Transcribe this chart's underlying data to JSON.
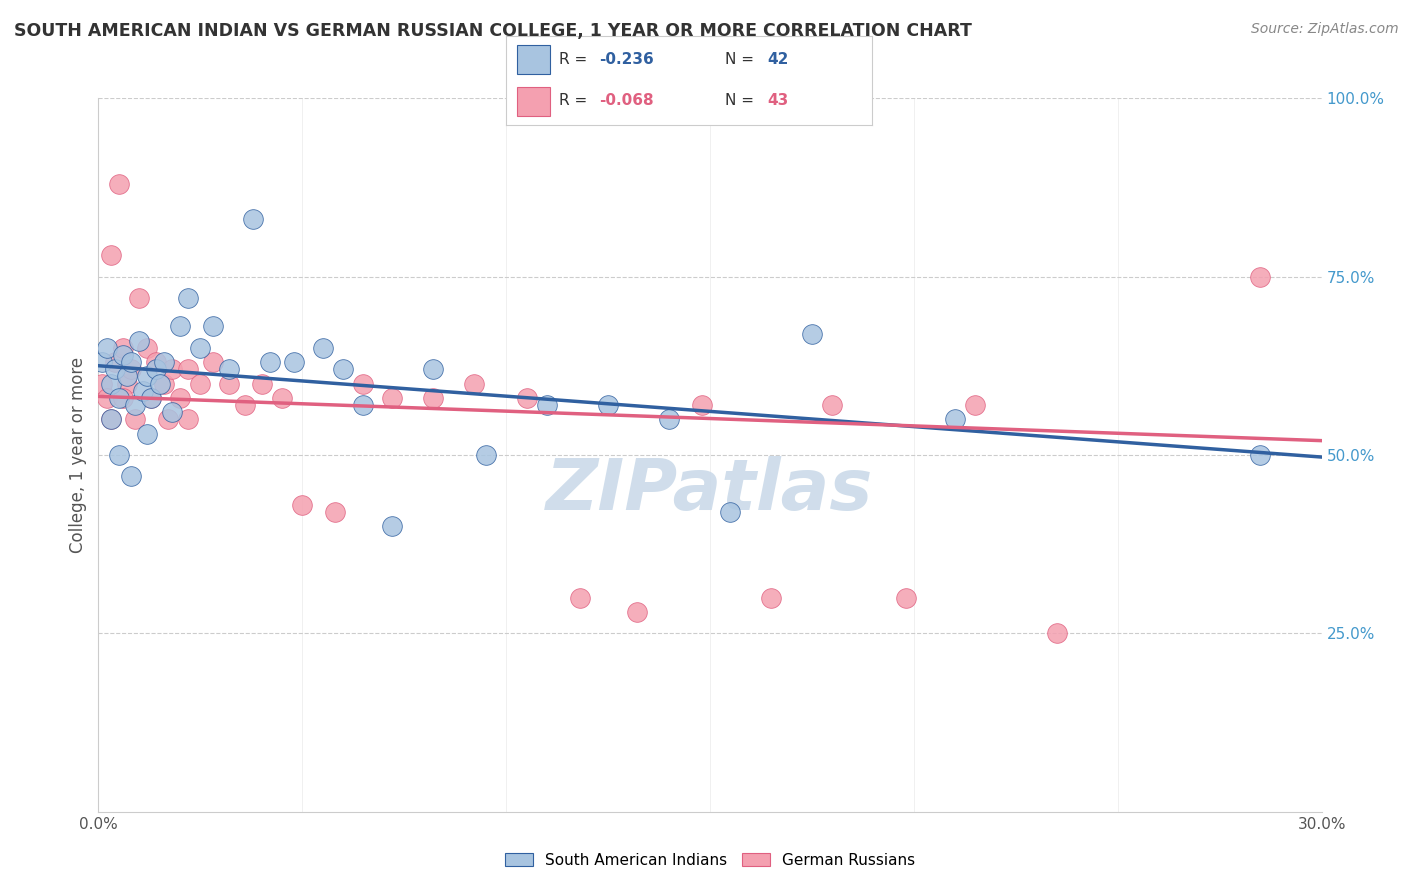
{
  "title": "SOUTH AMERICAN INDIAN VS GERMAN RUSSIAN COLLEGE, 1 YEAR OR MORE CORRELATION CHART",
  "source": "Source: ZipAtlas.com",
  "ylabel": "College, 1 year or more",
  "xmin": 0.0,
  "xmax": 0.3,
  "ymin": 0.0,
  "ymax": 1.0,
  "blue_R": -0.236,
  "blue_N": 42,
  "pink_R": -0.068,
  "pink_N": 43,
  "blue_color": "#a8c4e0",
  "pink_color": "#f4a0b0",
  "blue_line_color": "#3060a0",
  "pink_line_color": "#e06080",
  "blue_x": [
    0.001,
    0.002,
    0.003,
    0.004,
    0.005,
    0.006,
    0.007,
    0.008,
    0.009,
    0.01,
    0.011,
    0.012,
    0.013,
    0.014,
    0.015,
    0.016,
    0.018,
    0.02,
    0.022,
    0.025,
    0.028,
    0.032,
    0.038,
    0.042,
    0.048,
    0.055,
    0.06,
    0.065,
    0.072,
    0.082,
    0.095,
    0.11,
    0.125,
    0.14,
    0.155,
    0.175,
    0.21,
    0.285,
    0.003,
    0.005,
    0.008,
    0.012
  ],
  "blue_y": [
    0.63,
    0.65,
    0.6,
    0.62,
    0.58,
    0.64,
    0.61,
    0.63,
    0.57,
    0.66,
    0.59,
    0.61,
    0.58,
    0.62,
    0.6,
    0.63,
    0.56,
    0.68,
    0.72,
    0.65,
    0.68,
    0.62,
    0.83,
    0.63,
    0.63,
    0.65,
    0.62,
    0.57,
    0.4,
    0.62,
    0.5,
    0.57,
    0.57,
    0.55,
    0.42,
    0.67,
    0.55,
    0.5,
    0.55,
    0.5,
    0.47,
    0.53
  ],
  "pink_x": [
    0.001,
    0.002,
    0.003,
    0.004,
    0.005,
    0.006,
    0.007,
    0.008,
    0.01,
    0.012,
    0.014,
    0.016,
    0.018,
    0.02,
    0.022,
    0.025,
    0.028,
    0.032,
    0.036,
    0.04,
    0.045,
    0.05,
    0.058,
    0.065,
    0.072,
    0.082,
    0.092,
    0.105,
    0.118,
    0.132,
    0.148,
    0.165,
    0.18,
    0.198,
    0.215,
    0.235,
    0.285,
    0.003,
    0.006,
    0.009,
    0.013,
    0.017,
    0.022
  ],
  "pink_y": [
    0.6,
    0.58,
    0.78,
    0.63,
    0.88,
    0.65,
    0.6,
    0.62,
    0.72,
    0.65,
    0.63,
    0.6,
    0.62,
    0.58,
    0.62,
    0.6,
    0.63,
    0.6,
    0.57,
    0.6,
    0.58,
    0.43,
    0.42,
    0.6,
    0.58,
    0.58,
    0.6,
    0.58,
    0.3,
    0.28,
    0.57,
    0.3,
    0.57,
    0.3,
    0.57,
    0.25,
    0.75,
    0.55,
    0.58,
    0.55,
    0.58,
    0.55,
    0.55
  ],
  "watermark": "ZIPatlas",
  "watermark_color": "#c8d8e8",
  "legend_label_blue": "South American Indians",
  "legend_label_pink": "German Russians",
  "background_color": "#ffffff",
  "grid_color": "#cccccc",
  "right_axis_color": "#4499cc",
  "tick_color": "#555555",
  "blue_line_y0": 0.625,
  "blue_line_y1": 0.497,
  "pink_line_y0": 0.582,
  "pink_line_y1": 0.52
}
